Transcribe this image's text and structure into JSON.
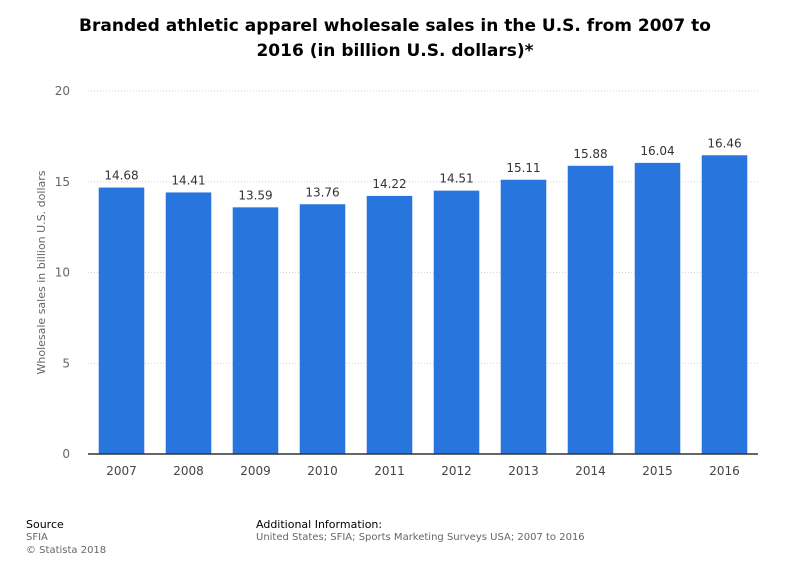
{
  "chart_data": {
    "type": "bar",
    "title": "Branded athletic apparel wholesale sales in the U.S. from 2007 to 2016 (in billion U.S. dollars)*",
    "title_lines": [
      "Branded athletic apparel wholesale sales in the U.S. from 2007 to",
      "2016 (in billion U.S. dollars)*"
    ],
    "categories": [
      "2007",
      "2008",
      "2009",
      "2010",
      "2011",
      "2012",
      "2013",
      "2014",
      "2015",
      "2016"
    ],
    "values": [
      14.68,
      14.41,
      13.59,
      13.76,
      14.22,
      14.51,
      15.11,
      15.88,
      16.04,
      16.46
    ],
    "value_labels": [
      "14.68",
      "14.41",
      "13.59",
      "13.76",
      "14.22",
      "14.51",
      "15.11",
      "15.88",
      "16.04",
      "16.46"
    ],
    "xlabel": "",
    "ylabel": "Wholesale sales in billion U.S. dollars",
    "ylim": [
      0,
      20
    ],
    "yticks": [
      0,
      5,
      10,
      15,
      20
    ],
    "grid": true,
    "bar_color": "#2876dd",
    "legend": "none"
  },
  "footer": {
    "source_heading": "Source",
    "source_lines": [
      "SFIA",
      "© Statista 2018"
    ],
    "info_heading": "Additional Information:",
    "info_text": "United States; SFIA; Sports Marketing Surveys USA; 2007 to 2016"
  }
}
